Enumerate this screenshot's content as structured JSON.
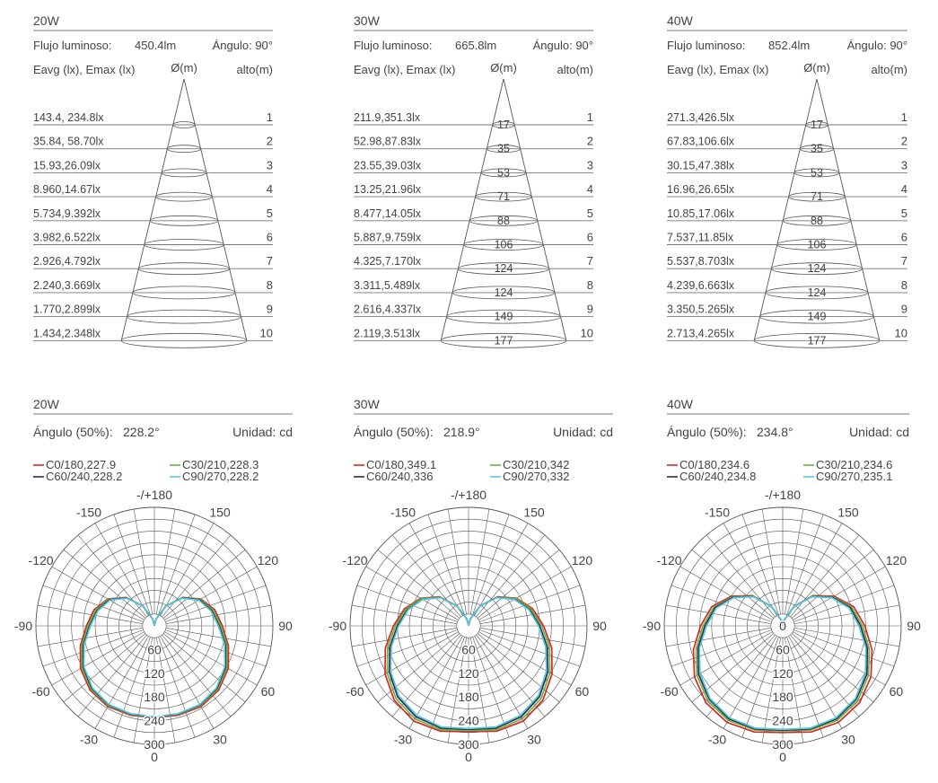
{
  "cone_header": {
    "eavg_emax": "Eavg (lx), Emax (lx)",
    "diameter": "Ø(m)",
    "height": "alto(m)",
    "flux_label": "Flujo luminoso:",
    "angle_label": "Ángulo: 90°"
  },
  "polar_header": {
    "angle50_label": "Ángulo (50%):",
    "unit_label": "Unidad: cd",
    "angle_ticks": [
      "-/+180",
      "-150",
      "150",
      "-120",
      "120",
      "-90",
      "90",
      "-60",
      "60",
      "-30",
      "30",
      "0"
    ]
  },
  "colors": {
    "C0/180": "#d9262a",
    "C30/210": "#6ab43e",
    "C60/240": "#2a2d4f",
    "C90/270": "#56c6dd",
    "grid": "#555555",
    "text": "#444444"
  },
  "panels": [
    {
      "title": "20W",
      "flux": "450.4lm",
      "angle50": "228.2°",
      "heights": [
        "1",
        "2",
        "3",
        "4",
        "5",
        "6",
        "7",
        "8",
        "9",
        "10"
      ],
      "illuminance": [
        "143.4, 234.8lx",
        "35.84, 58.70lx",
        "15.93,26.09lx",
        "8.960,14.67lx",
        "5.734,9.392lx",
        "3.982,6.522lx",
        "2.926,4.792lx",
        "2.240,3.669lx",
        "1.770,2.899lx",
        "1.434,2.348lx"
      ],
      "diameters": [
        "",
        "",
        "",
        "",
        "",
        "",
        "",
        "",
        "",
        ""
      ],
      "legend": [
        "C0/180,227.9",
        "C30/210,228.3",
        "C60/240,228.2",
        "C90/270,228.2"
      ],
      "radial_ticks": [
        "60",
        "120",
        "180",
        "240",
        "300"
      ]
    },
    {
      "title": "30W",
      "flux": "665.8lm",
      "angle50": "218.9°",
      "heights": [
        "1",
        "2",
        "3",
        "4",
        "5",
        "6",
        "7",
        "8",
        "9",
        "10"
      ],
      "illuminance": [
        "211.9,351.3lx",
        "52.98,87.83lx",
        "23.55,39.03lx",
        "13.25,21.96lx",
        "8.477,14.05lx",
        "5.887,9.759lx",
        "4.325,7.170lx",
        "3.311,5.489lx",
        "2.616,4.337lx",
        "2.119,3.513lx"
      ],
      "diameters": [
        "17",
        "35",
        "53",
        "71",
        "88",
        "106",
        "124",
        "124",
        "149",
        "177"
      ],
      "legend": [
        "C0/180,349.1",
        "C30/210,342",
        "C60/240,336",
        "C90/270,332"
      ],
      "radial_ticks": [
        "60",
        "120",
        "180",
        "240",
        "300"
      ]
    },
    {
      "title": "40W",
      "flux": "852.4lm",
      "angle50": "234.8°",
      "heights": [
        "1",
        "2",
        "3",
        "4",
        "5",
        "6",
        "7",
        "8",
        "9",
        "10"
      ],
      "illuminance": [
        "271.3,426.5lx",
        "67.83,106.6lx",
        "30.15,47.38lx",
        "16.96,26.65lx",
        "10.85,17.06lx",
        "7.537,11.85lx",
        "5.537,8.703lx",
        "4.239,6.663lx",
        "3.350,5.265lx",
        "2.713,4.265lx"
      ],
      "diameters": [
        "17",
        "35",
        "53",
        "71",
        "88",
        "106",
        "124",
        "124",
        "149",
        "177"
      ],
      "legend": [
        "C0/180,234.6",
        "C30/210,234.6",
        "C60/240,234.8",
        "C90/270,235.1"
      ],
      "radial_ticks": [
        "0",
        "60",
        "120",
        "180",
        "240",
        "300"
      ]
    }
  ],
  "chart_data": [
    {
      "type": "polar",
      "title": "20W",
      "angle_unit": "deg",
      "angle_range": [
        -180,
        180
      ],
      "rlim": [
        0,
        300
      ],
      "rticks": [
        60,
        120,
        180,
        240,
        300
      ],
      "series": [
        {
          "name": "C0/180,227.9",
          "theta": [
            0,
            15,
            30,
            45,
            60,
            75,
            90,
            105,
            120,
            135,
            150,
            165,
            180
          ],
          "r": [
            232,
            234,
            236,
            230,
            216,
            194,
            172,
            158,
            136,
            102,
            58,
            18,
            2
          ]
        },
        {
          "name": "C30/210,228.3",
          "theta": [
            0,
            15,
            30,
            45,
            60,
            75,
            90,
            105,
            120,
            135,
            150,
            165,
            180
          ],
          "r": [
            231,
            232,
            233,
            227,
            212,
            190,
            168,
            154,
            134,
            101,
            58,
            18,
            2
          ]
        },
        {
          "name": "C60/240,228.2",
          "theta": [
            0,
            15,
            30,
            45,
            60,
            75,
            90,
            105,
            120,
            135,
            150,
            165,
            180
          ],
          "r": [
            231,
            231,
            231,
            224,
            208,
            186,
            164,
            150,
            132,
            100,
            58,
            18,
            2
          ]
        },
        {
          "name": "C90/270,228.2",
          "theta": [
            0,
            15,
            30,
            45,
            60,
            75,
            90,
            105,
            120,
            135,
            150,
            165,
            180
          ],
          "r": [
            230,
            230,
            230,
            222,
            206,
            184,
            162,
            148,
            130,
            99,
            58,
            18,
            2
          ]
        }
      ]
    },
    {
      "type": "polar",
      "title": "30W",
      "angle_unit": "deg",
      "angle_range": [
        -180,
        180
      ],
      "rlim": [
        0,
        300
      ],
      "rticks": [
        60,
        120,
        180,
        240,
        300
      ],
      "series": [
        {
          "name": "C0/180,349.1",
          "theta": [
            0,
            15,
            30,
            45,
            60,
            75,
            90,
            105,
            120,
            135,
            150,
            165,
            180
          ],
          "r": [
            268,
            276,
            278,
            266,
            244,
            218,
            190,
            168,
            140,
            104,
            58,
            18,
            2
          ]
        },
        {
          "name": "C30/210,342",
          "theta": [
            0,
            15,
            30,
            45,
            60,
            75,
            90,
            105,
            120,
            135,
            150,
            165,
            180
          ],
          "r": [
            265,
            272,
            272,
            260,
            238,
            212,
            185,
            164,
            138,
            103,
            58,
            18,
            2
          ]
        },
        {
          "name": "C60/240,336",
          "theta": [
            0,
            15,
            30,
            45,
            60,
            75,
            90,
            105,
            120,
            135,
            150,
            165,
            180
          ],
          "r": [
            262,
            268,
            266,
            254,
            232,
            206,
            180,
            160,
            135,
            102,
            58,
            18,
            2
          ]
        },
        {
          "name": "C90/270,332",
          "theta": [
            0,
            15,
            30,
            45,
            60,
            75,
            90,
            105,
            120,
            135,
            150,
            165,
            180
          ],
          "r": [
            260,
            265,
            262,
            250,
            228,
            202,
            177,
            158,
            134,
            101,
            58,
            18,
            2
          ]
        }
      ]
    },
    {
      "type": "polar",
      "title": "40W",
      "angle_unit": "deg",
      "angle_range": [
        -180,
        180
      ],
      "rlim": [
        0,
        300
      ],
      "rticks": [
        0,
        60,
        120,
        180,
        240,
        300
      ],
      "series": [
        {
          "name": "C0/180,234.6",
          "theta": [
            0,
            15,
            30,
            45,
            60,
            75,
            90,
            105,
            120,
            135,
            150,
            165,
            180
          ],
          "r": [
            270,
            278,
            282,
            275,
            258,
            234,
            208,
            186,
            150,
            108,
            56,
            16,
            2
          ]
        },
        {
          "name": "C30/210,234.6",
          "theta": [
            0,
            15,
            30,
            45,
            60,
            75,
            90,
            105,
            120,
            135,
            150,
            165,
            180
          ],
          "r": [
            266,
            273,
            276,
            268,
            251,
            227,
            202,
            181,
            147,
            106,
            56,
            16,
            2
          ]
        },
        {
          "name": "C60/240,234.8",
          "theta": [
            0,
            15,
            30,
            45,
            60,
            75,
            90,
            105,
            120,
            135,
            150,
            165,
            180
          ],
          "r": [
            264,
            270,
            272,
            263,
            246,
            222,
            197,
            177,
            145,
            105,
            56,
            16,
            2
          ]
        },
        {
          "name": "C90/270,235.1",
          "theta": [
            0,
            15,
            30,
            45,
            60,
            75,
            90,
            105,
            120,
            135,
            150,
            165,
            180
          ],
          "r": [
            262,
            268,
            269,
            260,
            242,
            218,
            193,
            174,
            143,
            104,
            56,
            16,
            2
          ]
        }
      ]
    }
  ]
}
